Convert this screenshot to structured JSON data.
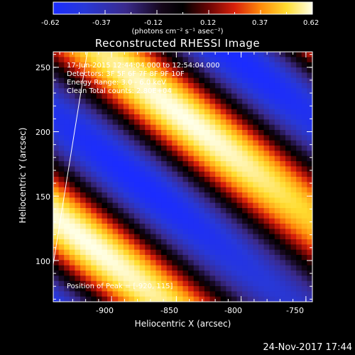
{
  "colorbar": {
    "tick_labels": [
      "-0.62",
      "-0.37",
      "-0.12",
      "0.12",
      "0.37",
      "0.62"
    ],
    "unit_label": "(photons cm⁻² s⁻¹ asec⁻²)"
  },
  "chart_data": {
    "type": "heatmap",
    "title": "Reconstructed RHESSI Image",
    "xlabel": "Heliocentric X (arcsec)",
    "ylabel": "Heliocentric Y (arcsec)",
    "xlim": [
      -945,
      -745
    ],
    "ylim": [
      68,
      262
    ],
    "x_ticks": [
      "-900",
      "-850",
      "-800",
      "-750"
    ],
    "y_ticks": [
      "100",
      "150",
      "200",
      "250"
    ],
    "value_range": [
      -0.62,
      0.62
    ],
    "colormap": "blue-black-red-yellow-white",
    "annotations": [
      "17-Jun-2015 12:44:04.000 to 12:54:04.000",
      "Detectors: 3F 5F 6F 7F 8F 9F 10F",
      "Energy Range: 3.0 - 6.0 keV",
      "Clean    Total counts: 2.80E+04",
      "Position of Peak = [-920, 115]"
    ],
    "timestamp": "24-Nov-2017 17:44"
  }
}
